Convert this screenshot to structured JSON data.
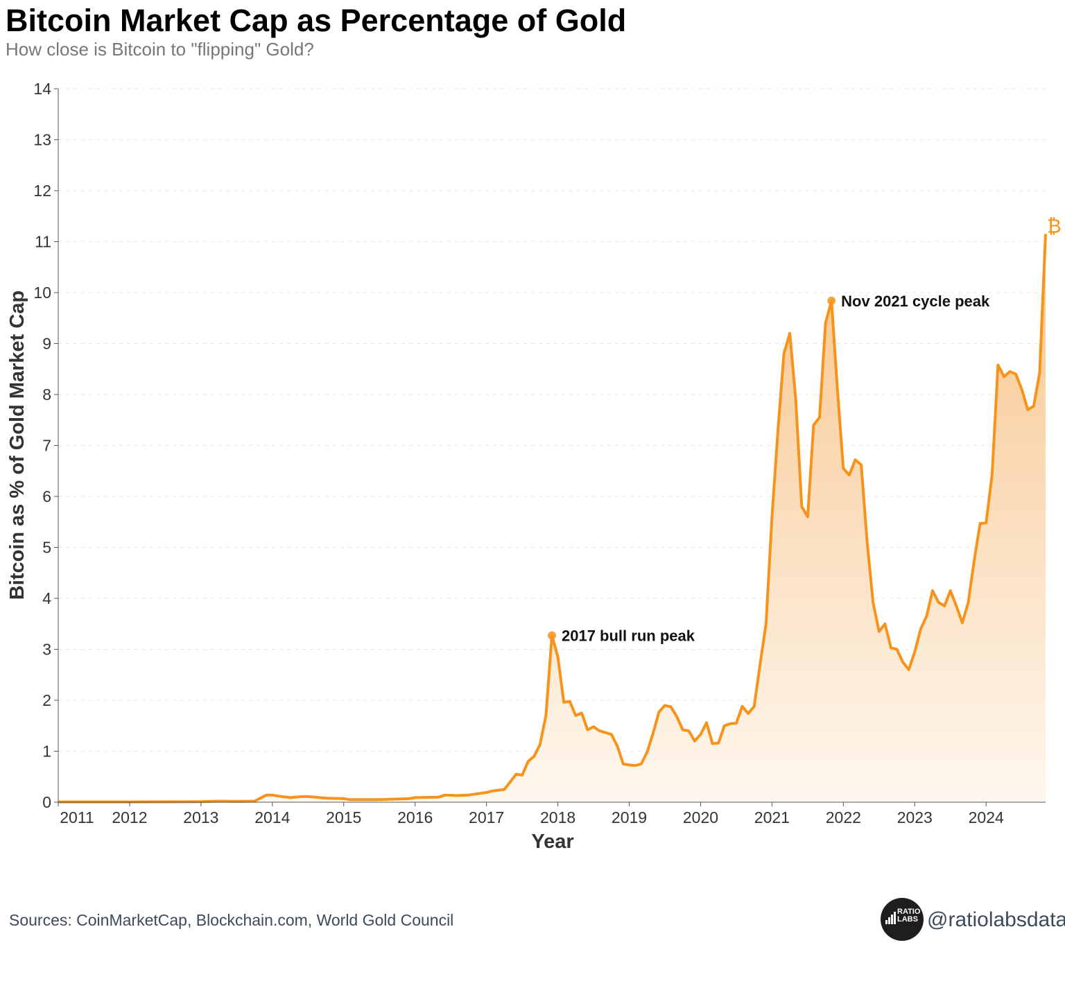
{
  "title": "Bitcoin Market Cap as Percentage of Gold",
  "subtitle": "How close is Bitcoin to \"flipping\" Gold?",
  "footer": {
    "source": "Sources: CoinMarketCap, Blockchain.com, World Gold Council",
    "handle": "@ratiolabsdata",
    "logo_text": "RATIO LABS"
  },
  "colors": {
    "line": "#F7931A",
    "fill_top": "#F8C58C",
    "fill_bottom": "#FEF7EE",
    "grid": "#e6e6e6"
  },
  "chart_data": {
    "type": "area",
    "xlabel": "Year",
    "ylabel": "Bitcoin as % of Gold Market Cap",
    "xlim": [
      "2011-01",
      "2024-11"
    ],
    "ylim": [
      0,
      14
    ],
    "grid": "horizontal dashed",
    "x_ticks": [
      "2011",
      "2012",
      "2013",
      "2014",
      "2015",
      "2016",
      "2017",
      "2018",
      "2019",
      "2020",
      "2021",
      "2022",
      "2023",
      "2024"
    ],
    "y_ticks": [
      0,
      1,
      2,
      3,
      4,
      5,
      6,
      7,
      8,
      9,
      10,
      11,
      12,
      13,
      14
    ],
    "end_marker": "₿",
    "annotations": [
      {
        "x": "2017-12",
        "y": 3.27,
        "text": "2017 bull run peak"
      },
      {
        "x": "2021-11",
        "y": 9.84,
        "text": "Nov 2021 cycle peak"
      }
    ],
    "series": [
      {
        "points": [
          [
            "2011-01",
            0.005
          ],
          [
            "2012-01",
            0.005
          ],
          [
            "2013-01",
            0.01
          ],
          [
            "2013-04",
            0.02
          ],
          [
            "2013-07",
            0.015
          ],
          [
            "2013-10",
            0.02
          ],
          [
            "2013-12",
            0.14
          ],
          [
            "2014-01",
            0.14
          ],
          [
            "2014-02",
            0.12
          ],
          [
            "2014-04",
            0.09
          ],
          [
            "2014-06",
            0.11
          ],
          [
            "2014-07",
            0.11
          ],
          [
            "2014-10",
            0.08
          ],
          [
            "2015-01",
            0.07
          ],
          [
            "2015-02",
            0.05
          ],
          [
            "2015-07",
            0.05
          ],
          [
            "2015-12",
            0.07
          ],
          [
            "2016-01",
            0.09
          ],
          [
            "2016-05",
            0.1
          ],
          [
            "2016-06",
            0.14
          ],
          [
            "2016-08",
            0.13
          ],
          [
            "2016-10",
            0.14
          ],
          [
            "2017-01",
            0.19
          ],
          [
            "2017-02",
            0.22
          ],
          [
            "2017-04",
            0.25
          ],
          [
            "2017-06",
            0.55
          ],
          [
            "2017-07",
            0.53
          ],
          [
            "2017-08",
            0.8
          ],
          [
            "2017-09",
            0.9
          ],
          [
            "2017-10",
            1.13
          ],
          [
            "2017-11",
            1.7
          ],
          [
            "2017-12",
            3.27
          ],
          [
            "2018-01",
            2.85
          ],
          [
            "2018-02",
            1.96
          ],
          [
            "2018-03",
            1.98
          ],
          [
            "2018-04",
            1.7
          ],
          [
            "2018-05",
            1.75
          ],
          [
            "2018-06",
            1.42
          ],
          [
            "2018-07",
            1.48
          ],
          [
            "2018-08",
            1.4
          ],
          [
            "2018-10",
            1.33
          ],
          [
            "2018-11",
            1.1
          ],
          [
            "2018-12",
            0.75
          ],
          [
            "2019-01",
            0.73
          ],
          [
            "2019-02",
            0.72
          ],
          [
            "2019-03",
            0.75
          ],
          [
            "2019-04",
            0.98
          ],
          [
            "2019-05",
            1.35
          ],
          [
            "2019-06",
            1.77
          ],
          [
            "2019-07",
            1.9
          ],
          [
            "2019-08",
            1.87
          ],
          [
            "2019-09",
            1.68
          ],
          [
            "2019-10",
            1.42
          ],
          [
            "2019-11",
            1.4
          ],
          [
            "2019-12",
            1.2
          ],
          [
            "2020-01",
            1.33
          ],
          [
            "2020-02",
            1.56
          ],
          [
            "2020-03",
            1.15
          ],
          [
            "2020-04",
            1.16
          ],
          [
            "2020-05",
            1.5
          ],
          [
            "2020-06",
            1.54
          ],
          [
            "2020-07",
            1.55
          ],
          [
            "2020-08",
            1.88
          ],
          [
            "2020-09",
            1.74
          ],
          [
            "2020-10",
            1.88
          ],
          [
            "2020-11",
            2.7
          ],
          [
            "2020-12",
            3.5
          ],
          [
            "2021-01",
            5.6
          ],
          [
            "2021-02",
            7.3
          ],
          [
            "2021-03",
            8.8
          ],
          [
            "2021-04",
            9.2
          ],
          [
            "2021-05",
            7.9
          ],
          [
            "2021-06",
            5.8
          ],
          [
            "2021-07",
            5.6
          ],
          [
            "2021-08",
            7.4
          ],
          [
            "2021-09",
            7.55
          ],
          [
            "2021-10",
            9.4
          ],
          [
            "2021-11",
            9.84
          ],
          [
            "2021-12",
            8.1
          ],
          [
            "2022-01",
            6.55
          ],
          [
            "2022-02",
            6.42
          ],
          [
            "2022-03",
            6.72
          ],
          [
            "2022-04",
            6.62
          ],
          [
            "2022-05",
            5.1
          ],
          [
            "2022-06",
            3.92
          ],
          [
            "2022-07",
            3.35
          ],
          [
            "2022-08",
            3.5
          ],
          [
            "2022-09",
            3.03
          ],
          [
            "2022-10",
            3.0
          ],
          [
            "2022-11",
            2.75
          ],
          [
            "2022-12",
            2.6
          ],
          [
            "2023-01",
            2.95
          ],
          [
            "2023-02",
            3.4
          ],
          [
            "2023-03",
            3.65
          ],
          [
            "2023-04",
            4.15
          ],
          [
            "2023-05",
            3.92
          ],
          [
            "2023-06",
            3.85
          ],
          [
            "2023-07",
            4.15
          ],
          [
            "2023-08",
            3.85
          ],
          [
            "2023-09",
            3.52
          ],
          [
            "2023-10",
            3.92
          ],
          [
            "2023-11",
            4.75
          ],
          [
            "2023-12",
            5.47
          ],
          [
            "2024-01",
            5.48
          ],
          [
            "2024-02",
            6.42
          ],
          [
            "2024-03",
            8.58
          ],
          [
            "2024-04",
            8.35
          ],
          [
            "2024-05",
            8.45
          ],
          [
            "2024-06",
            8.4
          ],
          [
            "2024-07",
            8.1
          ],
          [
            "2024-08",
            7.7
          ],
          [
            "2024-09",
            7.77
          ],
          [
            "2024-10",
            8.42
          ],
          [
            "2024-11",
            11.15
          ]
        ]
      }
    ]
  }
}
